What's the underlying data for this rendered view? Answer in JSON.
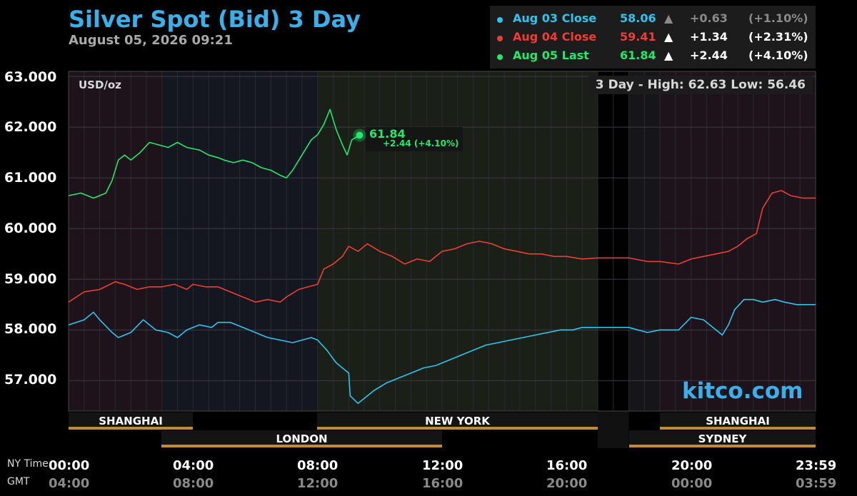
{
  "title": "Silver Spot (Bid) 3 Day",
  "subtitle": "August 05, 2026 09:21",
  "units": "USD/oz",
  "hilo": "3 Day - High: 62.63  Low: 56.46",
  "brand": "kitco.com",
  "legend": [
    {
      "label": "Aug 03 Close",
      "value": "58.06",
      "arrow": "▲",
      "change": "+0.63",
      "pct": "(+1.10%)",
      "color": "#2ec4ee",
      "muted": true
    },
    {
      "label": "Aug 04 Close",
      "value": "59.41",
      "arrow": "▲",
      "change": "+1.34",
      "pct": "(+2.31%)",
      "color": "#ee3e33",
      "muted": false
    },
    {
      "label": "Aug 05 Last",
      "value": "61.84",
      "arrow": "▲",
      "change": "+2.44",
      "pct": "(+4.10%)",
      "color": "#22e86e",
      "muted": false
    }
  ],
  "last_point": {
    "value": "61.84",
    "change": "+2.44 (+4.10%)"
  },
  "sessions_top": [
    "SHANGHAI",
    "NEW YORK",
    "SHANGHAI"
  ],
  "sessions_bottom": [
    "LONDON",
    "SYDNEY"
  ],
  "row_labels": {
    "ny": "NY Time",
    "gmt": "GMT"
  },
  "x_ny": [
    "00:00",
    "04:00",
    "08:00",
    "12:00",
    "16:00",
    "20:00",
    "23:59"
  ],
  "x_gmt": [
    "04:00",
    "08:00",
    "12:00",
    "16:00",
    "20:00",
    "00:00",
    "03:59"
  ],
  "chart_data": {
    "type": "line",
    "title": "Silver Spot (Bid) 3 Day",
    "ylabel": "USD/oz",
    "xlabel": "",
    "y_ticks": [
      "63.000",
      "62.000",
      "61.000",
      "60.000",
      "59.000",
      "58.000",
      "57.000"
    ],
    "ylim": [
      56.4,
      63.1
    ],
    "xlim_hours": [
      0,
      24
    ],
    "series": [
      {
        "name": "Aug 03 Close",
        "color": "#2ec4ee",
        "points": [
          [
            0.0,
            58.1
          ],
          [
            0.5,
            58.2
          ],
          [
            0.8,
            58.35
          ],
          [
            1.0,
            58.2
          ],
          [
            1.4,
            57.95
          ],
          [
            1.6,
            57.85
          ],
          [
            2.0,
            57.95
          ],
          [
            2.4,
            58.2
          ],
          [
            2.8,
            58.0
          ],
          [
            3.2,
            57.95
          ],
          [
            3.5,
            57.85
          ],
          [
            3.8,
            58.0
          ],
          [
            4.2,
            58.1
          ],
          [
            4.6,
            58.05
          ],
          [
            4.8,
            58.15
          ],
          [
            5.2,
            58.15
          ],
          [
            5.6,
            58.05
          ],
          [
            6.0,
            57.95
          ],
          [
            6.4,
            57.85
          ],
          [
            6.8,
            57.8
          ],
          [
            7.2,
            57.75
          ],
          [
            7.5,
            57.8
          ],
          [
            7.8,
            57.85
          ],
          [
            8.0,
            57.8
          ],
          [
            8.3,
            57.6
          ],
          [
            8.6,
            57.35
          ],
          [
            9.0,
            57.15
          ],
          [
            9.05,
            56.7
          ],
          [
            9.3,
            56.55
          ],
          [
            9.5,
            56.65
          ],
          [
            9.8,
            56.8
          ],
          [
            10.2,
            56.95
          ],
          [
            10.6,
            57.05
          ],
          [
            11.0,
            57.15
          ],
          [
            11.4,
            57.25
          ],
          [
            11.8,
            57.3
          ],
          [
            12.2,
            57.4
          ],
          [
            12.6,
            57.5
          ],
          [
            13.0,
            57.6
          ],
          [
            13.4,
            57.7
          ],
          [
            13.8,
            57.75
          ],
          [
            14.2,
            57.8
          ],
          [
            14.6,
            57.85
          ],
          [
            15.0,
            57.9
          ],
          [
            15.4,
            57.95
          ],
          [
            15.8,
            58.0
          ],
          [
            16.2,
            58.0
          ],
          [
            16.5,
            58.05
          ],
          [
            17.0,
            58.05
          ],
          [
            18.0,
            58.05
          ],
          [
            18.6,
            57.95
          ],
          [
            19.0,
            58.0
          ],
          [
            19.6,
            58.0
          ],
          [
            20.0,
            58.25
          ],
          [
            20.4,
            58.2
          ],
          [
            20.7,
            58.05
          ],
          [
            21.0,
            57.9
          ],
          [
            21.2,
            58.1
          ],
          [
            21.4,
            58.4
          ],
          [
            21.7,
            58.6
          ],
          [
            22.0,
            58.6
          ],
          [
            22.3,
            58.55
          ],
          [
            22.7,
            58.6
          ],
          [
            23.0,
            58.55
          ],
          [
            23.4,
            58.5
          ],
          [
            24.0,
            58.5
          ]
        ]
      },
      {
        "name": "Aug 04 Close",
        "color": "#ee3e33",
        "points": [
          [
            0.0,
            58.55
          ],
          [
            0.5,
            58.75
          ],
          [
            1.0,
            58.8
          ],
          [
            1.5,
            58.95
          ],
          [
            1.8,
            58.9
          ],
          [
            2.2,
            58.8
          ],
          [
            2.6,
            58.85
          ],
          [
            3.0,
            58.85
          ],
          [
            3.4,
            58.9
          ],
          [
            3.8,
            58.8
          ],
          [
            4.0,
            58.9
          ],
          [
            4.4,
            58.85
          ],
          [
            4.8,
            58.85
          ],
          [
            5.2,
            58.75
          ],
          [
            5.6,
            58.65
          ],
          [
            6.0,
            58.55
          ],
          [
            6.4,
            58.6
          ],
          [
            6.8,
            58.55
          ],
          [
            7.0,
            58.65
          ],
          [
            7.4,
            58.8
          ],
          [
            7.7,
            58.85
          ],
          [
            8.0,
            58.9
          ],
          [
            8.2,
            59.2
          ],
          [
            8.5,
            59.3
          ],
          [
            8.8,
            59.45
          ],
          [
            9.0,
            59.65
          ],
          [
            9.3,
            59.55
          ],
          [
            9.6,
            59.7
          ],
          [
            10.0,
            59.55
          ],
          [
            10.4,
            59.45
          ],
          [
            10.8,
            59.3
          ],
          [
            11.2,
            59.4
          ],
          [
            11.6,
            59.35
          ],
          [
            12.0,
            59.55
          ],
          [
            12.4,
            59.6
          ],
          [
            12.8,
            59.7
          ],
          [
            13.2,
            59.75
          ],
          [
            13.6,
            59.7
          ],
          [
            14.0,
            59.6
          ],
          [
            14.4,
            59.55
          ],
          [
            14.8,
            59.5
          ],
          [
            15.2,
            59.5
          ],
          [
            15.6,
            59.45
          ],
          [
            16.0,
            59.45
          ],
          [
            16.5,
            59.4
          ],
          [
            17.0,
            59.42
          ],
          [
            18.0,
            59.42
          ],
          [
            18.6,
            59.35
          ],
          [
            19.0,
            59.35
          ],
          [
            19.6,
            59.3
          ],
          [
            20.0,
            59.4
          ],
          [
            20.4,
            59.45
          ],
          [
            20.8,
            59.5
          ],
          [
            21.2,
            59.55
          ],
          [
            21.5,
            59.65
          ],
          [
            21.8,
            59.8
          ],
          [
            22.1,
            59.9
          ],
          [
            22.3,
            60.4
          ],
          [
            22.6,
            60.7
          ],
          [
            22.9,
            60.75
          ],
          [
            23.2,
            60.65
          ],
          [
            23.6,
            60.6
          ],
          [
            24.0,
            60.6
          ]
        ]
      },
      {
        "name": "Aug 05 Last",
        "color": "#22e86e",
        "points": [
          [
            0.0,
            60.65
          ],
          [
            0.4,
            60.7
          ],
          [
            0.8,
            60.6
          ],
          [
            1.2,
            60.7
          ],
          [
            1.4,
            60.95
          ],
          [
            1.6,
            61.35
          ],
          [
            1.8,
            61.45
          ],
          [
            2.0,
            61.35
          ],
          [
            2.3,
            61.5
          ],
          [
            2.6,
            61.7
          ],
          [
            2.9,
            61.65
          ],
          [
            3.2,
            61.6
          ],
          [
            3.5,
            61.7
          ],
          [
            3.8,
            61.6
          ],
          [
            4.2,
            61.55
          ],
          [
            4.5,
            61.45
          ],
          [
            4.8,
            61.4
          ],
          [
            5.0,
            61.35
          ],
          [
            5.3,
            61.3
          ],
          [
            5.6,
            61.35
          ],
          [
            5.9,
            61.3
          ],
          [
            6.2,
            61.2
          ],
          [
            6.5,
            61.15
          ],
          [
            6.8,
            61.05
          ],
          [
            7.0,
            61.0
          ],
          [
            7.2,
            61.15
          ],
          [
            7.4,
            61.35
          ],
          [
            7.6,
            61.55
          ],
          [
            7.8,
            61.75
          ],
          [
            8.0,
            61.85
          ],
          [
            8.2,
            62.05
          ],
          [
            8.4,
            62.35
          ],
          [
            8.6,
            61.95
          ],
          [
            8.8,
            61.65
          ],
          [
            8.95,
            61.45
          ],
          [
            9.1,
            61.75
          ],
          [
            9.35,
            61.84
          ]
        ]
      }
    ]
  }
}
